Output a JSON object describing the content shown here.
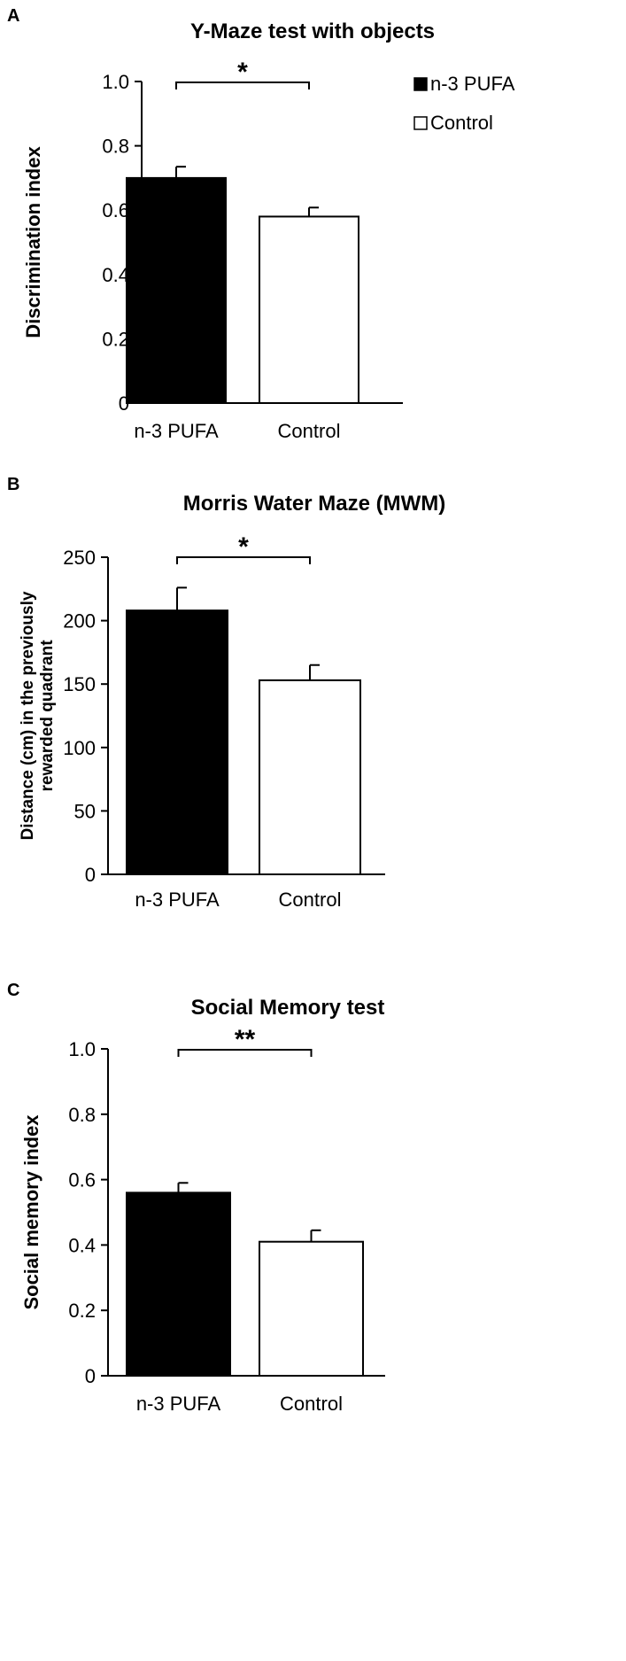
{
  "chart_data": [
    {
      "type": "bar",
      "panel_label": "A",
      "title": "Y-Maze test with objects",
      "ylabel": "Discrimination index",
      "xlabel": "",
      "categories": [
        "n-3 PUFA",
        "Control"
      ],
      "values": [
        0.7,
        0.58
      ],
      "errors": [
        0.035,
        0.028
      ],
      "bar_colors": [
        "#000000",
        "#ffffff"
      ],
      "ylim": [
        0,
        1.0
      ],
      "yticks": [
        0,
        0.2,
        0.4,
        0.6,
        0.8,
        1.0
      ],
      "ytick_labels": [
        "0",
        "0.2",
        "0.4",
        "0.6",
        "0.8",
        "1.0"
      ],
      "significance": "*",
      "legend": {
        "placement": "top-right",
        "entries": [
          "n-3 PUFA",
          "Control"
        ]
      },
      "grid": false
    },
    {
      "type": "bar",
      "panel_label": "B",
      "title": "Morris Water Maze (MWM)",
      "ylabel": "Distance (cm) in the previously rewarded quadrant",
      "ylabel_lines": [
        "Distance (cm) in the previously",
        "rewarded quadrant"
      ],
      "xlabel": "",
      "categories": [
        "n-3 PUFA",
        "Control"
      ],
      "values": [
        208,
        153
      ],
      "errors": [
        18,
        12
      ],
      "bar_colors": [
        "#000000",
        "#ffffff"
      ],
      "ylim": [
        0,
        250
      ],
      "yticks": [
        0,
        50,
        100,
        150,
        200,
        250
      ],
      "ytick_labels": [
        "0",
        "50",
        "100",
        "150",
        "200",
        "250"
      ],
      "significance": "*",
      "grid": false
    },
    {
      "type": "bar",
      "panel_label": "C",
      "title": "Social Memory test",
      "ylabel": "Social memory index",
      "xlabel": "",
      "categories": [
        "n-3 PUFA",
        "Control"
      ],
      "values": [
        0.56,
        0.41
      ],
      "errors": [
        0.03,
        0.035
      ],
      "bar_colors": [
        "#000000",
        "#ffffff"
      ],
      "ylim": [
        0,
        1.0
      ],
      "yticks": [
        0,
        0.2,
        0.4,
        0.6,
        0.8,
        1.0
      ],
      "ytick_labels": [
        "0",
        "0.2",
        "0.4",
        "0.6",
        "0.8",
        "1.0"
      ],
      "significance": "**",
      "grid": false
    }
  ]
}
